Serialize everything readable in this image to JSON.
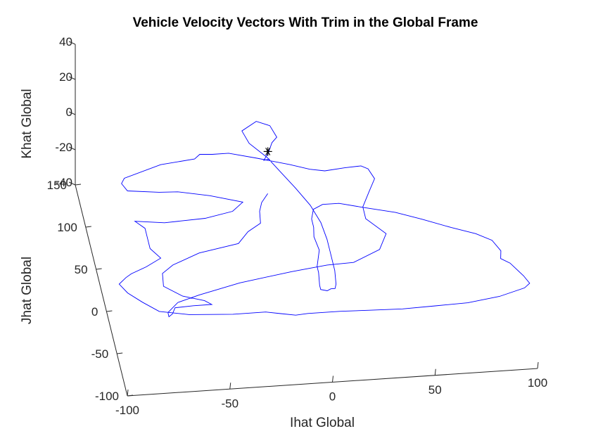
{
  "chart_data": {
    "type": "line",
    "projection": "3d",
    "title": "Vehicle Velocity Vectors With Trim in the Global Frame",
    "xlabel": "Ihat Global",
    "ylabel": "Jhat Global",
    "zlabel": "Khat Global",
    "xlim": [
      -100,
      100
    ],
    "ylim": [
      -100,
      150
    ],
    "zlim": [
      -40,
      40
    ],
    "x_ticks": [
      "-100",
      "-50",
      "0",
      "50",
      "100"
    ],
    "y_ticks": [
      "-100",
      "-50",
      "0",
      "50",
      "100",
      "150"
    ],
    "z_ticks": [
      "-40",
      "-20",
      "0",
      "20",
      "40"
    ],
    "grid": false,
    "legend": "none",
    "series_color": "#0000ff",
    "marker": {
      "symbol": "*",
      "x": -12,
      "y": 92,
      "z": 0
    },
    "series": [
      {
        "x": [
          -12,
          -15,
          -12,
          -9,
          -6,
          -8,
          -14,
          -22,
          -20,
          -13,
          -8,
          -3,
          2,
          5,
          6,
          6,
          6,
          5,
          4,
          2,
          0,
          -3,
          -3,
          -2,
          -2,
          1,
          0,
          1,
          1,
          3,
          8,
          16,
          26,
          42,
          54,
          67,
          78,
          85,
          88,
          87,
          91,
          96,
          98,
          95,
          82,
          66,
          50,
          34,
          18,
          4,
          -12,
          -18,
          -25,
          -32,
          -48,
          -69,
          -83,
          -90,
          -96,
          -99,
          -95,
          -92,
          -84,
          -76,
          -80,
          -80,
          -80,
          -84,
          -70,
          -50,
          -36,
          -30,
          -45,
          -60,
          -69,
          -84,
          -86,
          -84,
          -65,
          -48,
          -45,
          -39,
          -31,
          -18,
          -3,
          6,
          13,
          23,
          31,
          34,
          36,
          32,
          27,
          27,
          35,
          30,
          16,
          3,
          -15,
          -41,
          -62,
          -73,
          -79,
          -79,
          -77,
          -75,
          -66,
          -57,
          -60,
          -70,
          -78,
          -77,
          -71,
          -57,
          -37,
          -31,
          -24,
          -23,
          -21,
          -17
        ],
        "y": [
          83,
          82,
          90,
          102,
          108,
          122,
          128,
          118,
          103,
          85,
          66,
          47,
          26,
          5,
          -15,
          -30,
          -52,
          -68,
          -73,
          -73,
          -75,
          -73,
          -68,
          -53,
          -46,
          -27,
          -11,
          0,
          10,
          21,
          26,
          26,
          20,
          11,
          1,
          -11,
          -20,
          -29,
          -42,
          -51,
          -57,
          -73,
          -82,
          -87,
          -95,
          -100,
          -101,
          -102,
          -101,
          -100,
          -100,
          -101,
          -98,
          -95,
          -95,
          -92,
          -86,
          -74,
          -62,
          -51,
          -44,
          -40,
          -33,
          -24,
          -12,
          2,
          12,
          21,
          17,
          19,
          25,
          35,
          45,
          52,
          53,
          57,
          66,
          72,
          85,
          89,
          94,
          93,
          93,
          85,
          75,
          68,
          65,
          67,
          68,
          64,
          52,
          38,
          20,
          6,
          -13,
          -31,
          -44,
          -45,
          -50,
          -59,
          -70,
          -77,
          -88,
          -93,
          -90,
          -83,
          -82,
          -82,
          -77,
          -70,
          -57,
          -42,
          -33,
          -21,
          -13,
          0,
          9,
          23,
          33,
          43
        ],
        "z": [
          0,
          0,
          0,
          0,
          0,
          0,
          0,
          0,
          0,
          0,
          0,
          0,
          0,
          0,
          0,
          0,
          0,
          0,
          0,
          0,
          0,
          0,
          0,
          0,
          0,
          0,
          0,
          0,
          0,
          0,
          0,
          0,
          0,
          0,
          0,
          0,
          0,
          0,
          0,
          0,
          0,
          0,
          0,
          0,
          0,
          0,
          0,
          0,
          0,
          0,
          0,
          0,
          0,
          0,
          0,
          0,
          0,
          0,
          0,
          0,
          0,
          0,
          0,
          0,
          0,
          0,
          0,
          0,
          0,
          0,
          0,
          0,
          0,
          0,
          0,
          0,
          0,
          0,
          0,
          0,
          0,
          0,
          0,
          0,
          0,
          0,
          0,
          0,
          0,
          0,
          0,
          0,
          0,
          0,
          0,
          0,
          0,
          0,
          0,
          0,
          0,
          0,
          0,
          0,
          0,
          0,
          0,
          0,
          0,
          0,
          0,
          0,
          0,
          0,
          0,
          0,
          0,
          0,
          0,
          0
        ]
      }
    ]
  }
}
